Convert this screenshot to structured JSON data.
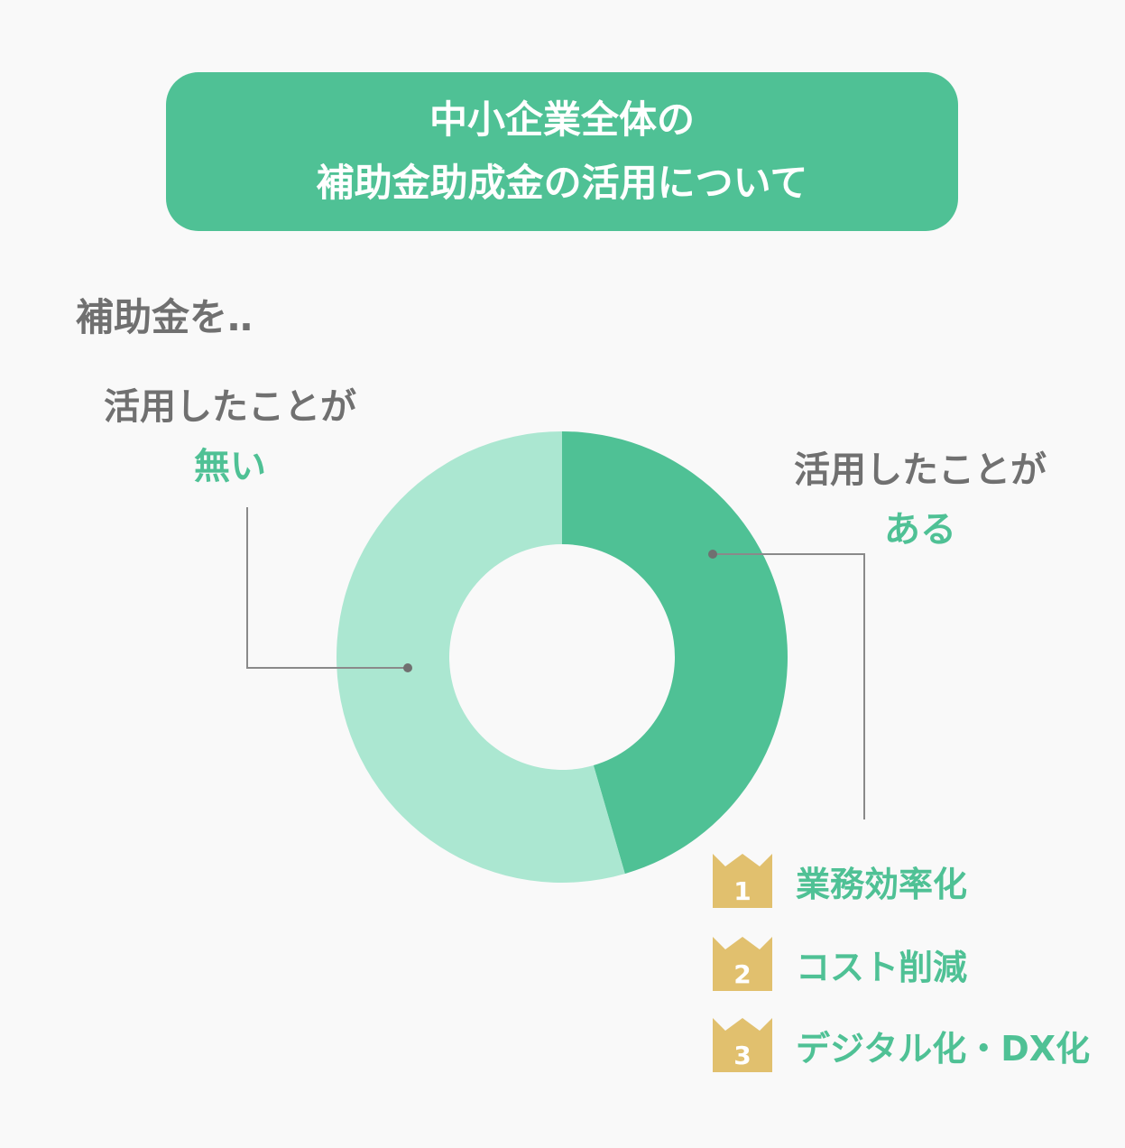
{
  "header": {
    "line1": "中小企業全体の",
    "line2": "補助金助成金の活用について"
  },
  "intro": "補助金を‥",
  "chart_data": {
    "type": "pie",
    "donut": true,
    "categories": [
      "活用したことがある",
      "活用したことが無い"
    ],
    "values": [
      45.5,
      54.5
    ],
    "colors": [
      "#4fc195",
      "#abe7d1"
    ],
    "start_angle": 0,
    "direction": "clockwise"
  },
  "labels": {
    "right": {
      "prefix": "活用したことが",
      "emphasis": "ある"
    },
    "left": {
      "prefix": "活用したことが",
      "emphasis": "無い"
    }
  },
  "ranking": [
    {
      "rank": "1",
      "text": "業務効率化"
    },
    {
      "rank": "2",
      "text": "コスト削減"
    },
    {
      "rank": "3",
      "text": "デジタル化・DX化"
    }
  ],
  "colors": {
    "accent": "#4fc195",
    "light": "#abe7d1",
    "text": "#707070",
    "crown": "#e1c06e"
  }
}
